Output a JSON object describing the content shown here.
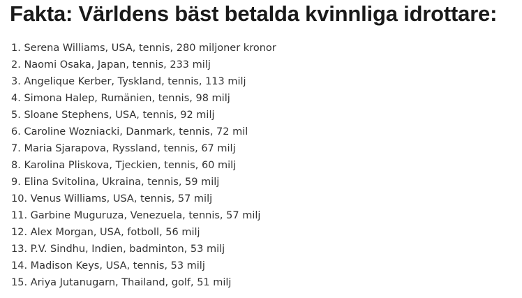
{
  "header": {
    "title": "Fakta: Världens bäst betalda kvinnliga idrottare:"
  },
  "list": {
    "items": [
      "1. Serena Williams, USA, tennis, 280 miljoner kronor",
      "2. Naomi Osaka, Japan, tennis, 233 milj",
      "3. Angelique Kerber, Tyskland, tennis, 113 milj",
      "4. Simona Halep, Rumänien, tennis, 98 milj",
      "5. Sloane Stephens, USA, tennis, 92 milj",
      "6. Caroline Wozniacki, Danmark, tennis, 72 mil",
      "7. Maria Sjarapova, Ryssland, tennis, 67 milj",
      "8. Karolina Pliskova, Tjeckien, tennis, 60 milj",
      "9. Elina Svitolina, Ukraina, tennis, 59 milj",
      "10. Venus Williams, USA, tennis, 57 milj",
      "11. Garbine Muguruza, Venezuela, tennis, 57 milj",
      "12. Alex Morgan, USA, fotboll, 56 milj",
      "13. P.V. Sindhu, Indien, badminton, 53 milj",
      "14. Madison Keys, USA, tennis, 53 milj",
      "15. Ariya Jutanugarn, Thailand, golf, 51 milj"
    ]
  }
}
